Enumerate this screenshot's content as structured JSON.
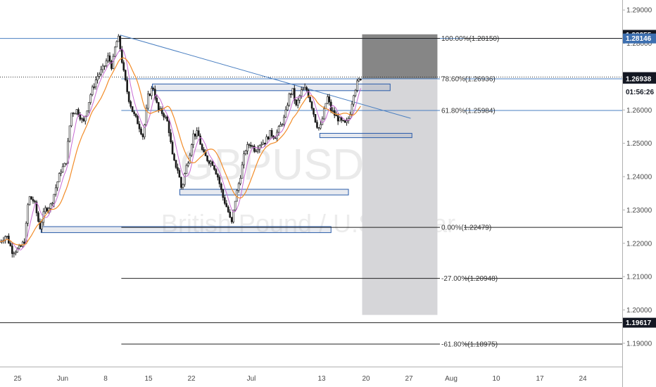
{
  "chart_data": {
    "type": "candlestick",
    "timeframe_label": "4h",
    "watermark": {
      "symbol": "GBPUSD",
      "interval": "4h",
      "description": "British Pound / U.S. Dollar"
    },
    "y_axis": {
      "range": [
        1.183,
        1.293
      ],
      "ticks": [
        "1.19000",
        "1.20000",
        "1.21000",
        "1.22000",
        "1.23000",
        "1.24000",
        "1.25000",
        "1.26000",
        "1.27000",
        "1.28000",
        "1.29000"
      ],
      "tick_values": [
        1.19,
        1.2,
        1.21,
        1.22,
        1.23,
        1.24,
        1.25,
        1.26,
        1.27,
        1.28,
        1.29
      ]
    },
    "x_axis": {
      "labels": [
        "25",
        "Jun",
        "8",
        "15",
        "22",
        "Jul",
        "13",
        "20",
        "27",
        "Aug",
        "10",
        "17",
        "24"
      ]
    },
    "price_tags": [
      {
        "id": "tag-128255",
        "label": "1.28255",
        "value": 1.28255,
        "style": "dark"
      },
      {
        "id": "tag-128146",
        "label": "1.28146",
        "value": 1.28146,
        "style": "blue"
      },
      {
        "id": "tag-126987",
        "label": "1.26987",
        "value": 1.26987,
        "style": "dark"
      },
      {
        "id": "tag-countdown",
        "label": "01:56:26",
        "value": 1.2655,
        "style": "plain"
      },
      {
        "id": "tag-126938",
        "label": "1.26938",
        "value": 1.26938,
        "style": "dark"
      },
      {
        "id": "tag-119617",
        "label": "1.19617",
        "value": 1.19617,
        "style": "dark"
      }
    ],
    "fibonacci": [
      {
        "label": "100.00%(1.28150)",
        "value": 1.2815,
        "color": "#222222",
        "x_start": 0.195
      },
      {
        "label": "78.60%(1.26936)",
        "value": 1.26936,
        "color": "#4a7fc1",
        "x_start": 0.195
      },
      {
        "label": "61.80%(1.25984)",
        "value": 1.25984,
        "color": "#4a7fc1",
        "x_start": 0.195
      },
      {
        "label": "0.00%(1.22479)",
        "value": 1.22479,
        "color": "#222222",
        "x_start": 0.195
      },
      {
        "label": "-27.00%(1.20948)",
        "value": 1.20948,
        "color": "#222222",
        "x_start": 0.195
      },
      {
        "label": "-61.80%(1.18975)",
        "value": 1.18975,
        "color": "#222222",
        "x_start": 0.195
      }
    ],
    "support_resistance_zones": [
      {
        "name": "zone-1",
        "x1": 0.066,
        "x2": 0.532,
        "y1": 1.2232,
        "y2": 1.225
      },
      {
        "name": "zone-2",
        "x1": 0.289,
        "x2": 0.56,
        "y1": 1.2345,
        "y2": 1.2362
      },
      {
        "name": "zone-3",
        "x1": 0.514,
        "x2": 0.662,
        "y1": 1.2517,
        "y2": 1.253
      },
      {
        "name": "zone-4",
        "x1": 0.245,
        "x2": 0.627,
        "y1": 1.2658,
        "y2": 1.2678
      }
    ],
    "position_box": {
      "profit": {
        "x1": 0.582,
        "x2": 0.703,
        "y1": 1.26936,
        "y2": 1.2827
      },
      "loss": {
        "x1": 0.582,
        "x2": 0.703,
        "y1": 1.1985,
        "y2": 1.26936
      }
    },
    "trendline": {
      "x1": 0.193,
      "y1": 1.2825,
      "x2": 0.66,
      "y2": 1.2575
    },
    "horizontal_lines": [
      {
        "name": "dotted-current-price",
        "value": 1.26987,
        "style": "dotted"
      },
      {
        "name": "line-128146",
        "value": 1.28146,
        "style": "solid-blue"
      },
      {
        "name": "line-119617",
        "value": 1.19617,
        "style": "solid-dark"
      }
    ],
    "price_path": [
      {
        "x": 0.0,
        "y": 1.2205
      },
      {
        "x": 0.01,
        "y": 1.2225
      },
      {
        "x": 0.02,
        "y": 1.2175
      },
      {
        "x": 0.032,
        "y": 1.2185
      },
      {
        "x": 0.04,
        "y": 1.221
      },
      {
        "x": 0.046,
        "y": 1.234
      },
      {
        "x": 0.055,
        "y": 1.2325
      },
      {
        "x": 0.064,
        "y": 1.2245
      },
      {
        "x": 0.072,
        "y": 1.23
      },
      {
        "x": 0.082,
        "y": 1.2315
      },
      {
        "x": 0.09,
        "y": 1.237
      },
      {
        "x": 0.098,
        "y": 1.242
      },
      {
        "x": 0.106,
        "y": 1.244
      },
      {
        "x": 0.114,
        "y": 1.259
      },
      {
        "x": 0.124,
        "y": 1.26
      },
      {
        "x": 0.134,
        "y": 1.256
      },
      {
        "x": 0.146,
        "y": 1.265
      },
      {
        "x": 0.156,
        "y": 1.27
      },
      {
        "x": 0.166,
        "y": 1.2725
      },
      {
        "x": 0.174,
        "y": 1.276
      },
      {
        "x": 0.18,
        "y": 1.2728
      },
      {
        "x": 0.186,
        "y": 1.28
      },
      {
        "x": 0.191,
        "y": 1.2815
      },
      {
        "x": 0.198,
        "y": 1.272
      },
      {
        "x": 0.206,
        "y": 1.264
      },
      {
        "x": 0.214,
        "y": 1.259
      },
      {
        "x": 0.222,
        "y": 1.256
      },
      {
        "x": 0.23,
        "y": 1.252
      },
      {
        "x": 0.238,
        "y": 1.264
      },
      {
        "x": 0.246,
        "y": 1.267
      },
      {
        "x": 0.254,
        "y": 1.26
      },
      {
        "x": 0.262,
        "y": 1.259
      },
      {
        "x": 0.27,
        "y": 1.256
      },
      {
        "x": 0.278,
        "y": 1.245
      },
      {
        "x": 0.286,
        "y": 1.242
      },
      {
        "x": 0.292,
        "y": 1.236
      },
      {
        "x": 0.298,
        "y": 1.242
      },
      {
        "x": 0.304,
        "y": 1.246
      },
      {
        "x": 0.31,
        "y": 1.2525
      },
      {
        "x": 0.318,
        "y": 1.253
      },
      {
        "x": 0.326,
        "y": 1.247
      },
      {
        "x": 0.334,
        "y": 1.245
      },
      {
        "x": 0.342,
        "y": 1.244
      },
      {
        "x": 0.35,
        "y": 1.24
      },
      {
        "x": 0.358,
        "y": 1.234
      },
      {
        "x": 0.366,
        "y": 1.23
      },
      {
        "x": 0.372,
        "y": 1.2255
      },
      {
        "x": 0.378,
        "y": 1.233
      },
      {
        "x": 0.386,
        "y": 1.24
      },
      {
        "x": 0.394,
        "y": 1.248
      },
      {
        "x": 0.402,
        "y": 1.25
      },
      {
        "x": 0.41,
        "y": 1.248
      },
      {
        "x": 0.418,
        "y": 1.25
      },
      {
        "x": 0.426,
        "y": 1.2505
      },
      {
        "x": 0.434,
        "y": 1.253
      },
      {
        "x": 0.442,
        "y": 1.252
      },
      {
        "x": 0.45,
        "y": 1.255
      },
      {
        "x": 0.458,
        "y": 1.258
      },
      {
        "x": 0.464,
        "y": 1.264
      },
      {
        "x": 0.47,
        "y": 1.266
      },
      {
        "x": 0.476,
        "y": 1.261
      },
      {
        "x": 0.484,
        "y": 1.2655
      },
      {
        "x": 0.492,
        "y": 1.2665
      },
      {
        "x": 0.5,
        "y": 1.262
      },
      {
        "x": 0.508,
        "y": 1.256
      },
      {
        "x": 0.514,
        "y": 1.254
      },
      {
        "x": 0.52,
        "y": 1.259
      },
      {
        "x": 0.526,
        "y": 1.264
      },
      {
        "x": 0.532,
        "y": 1.26
      },
      {
        "x": 0.54,
        "y": 1.258
      },
      {
        "x": 0.548,
        "y": 1.2565
      },
      {
        "x": 0.556,
        "y": 1.2555
      },
      {
        "x": 0.562,
        "y": 1.2585
      },
      {
        "x": 0.568,
        "y": 1.265
      },
      {
        "x": 0.574,
        "y": 1.268
      },
      {
        "x": 0.58,
        "y": 1.2698
      }
    ]
  }
}
